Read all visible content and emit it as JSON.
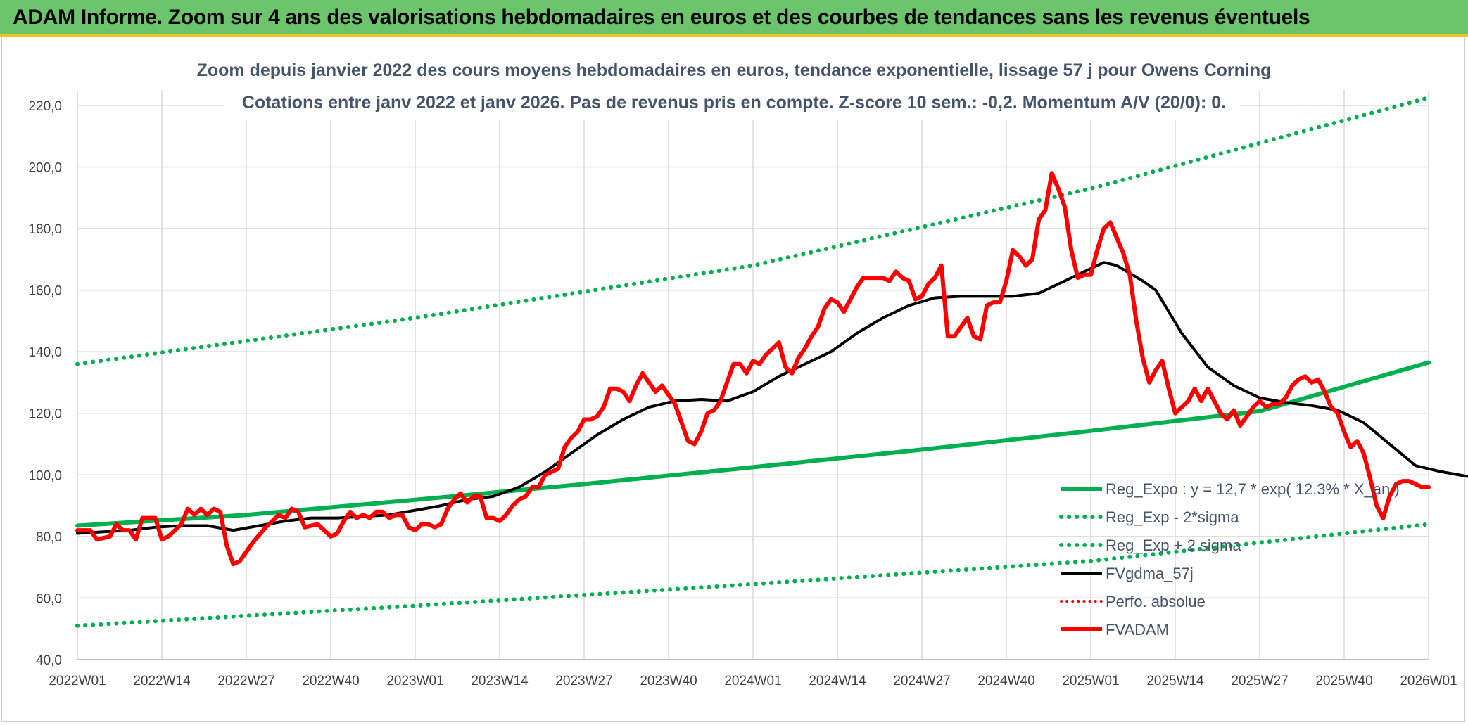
{
  "banner": {
    "title": "ADAM Informe. Zoom sur 4 ans des valorisations hebdomadaires en euros et des courbes de tendances sans les revenus éventuels"
  },
  "chart_data": {
    "type": "line",
    "title": "Zoom depuis janvier 2022 des cours moyens hebdomadaires en euros, tendance exponentielle, lissage 57 j pour Owens Corning",
    "subtitle": "Cotations entre janv 2022 et janv 2026. Pas de revenus pris en compte. Z-score 10 sem.: -0,2. Momentum A/V (20/0): 0.",
    "xlabel": "",
    "ylabel": "",
    "ylim": [
      40,
      225
    ],
    "yticks": [
      "40,0",
      "60,0",
      "80,0",
      "100,0",
      "120,0",
      "140,0",
      "160,0",
      "180,0",
      "200,0",
      "220,0"
    ],
    "xticks": [
      "2022W01",
      "2022W14",
      "2022W27",
      "2022W40",
      "2023W01",
      "2023W14",
      "2023W27",
      "2023W40",
      "2024W01",
      "2024W14",
      "2024W27",
      "2024W40",
      "2025W01",
      "2025W14",
      "2025W27",
      "2025W40",
      "2026W01"
    ],
    "x_week_range": [
      0,
      208
    ],
    "grid": true,
    "legend_position": "bottom-right",
    "colors": {
      "reg_expo": "#00b050",
      "reg_bands": "#00b050",
      "fvgdma": "#000000",
      "perfo": "#ff0000",
      "fvadam": "#ff0000",
      "banner": "#6cc46c",
      "banner_border": "#f0c419"
    },
    "series": [
      {
        "name": "Reg_Expo : y = 12,7 * exp( 12,3% *  X_an )",
        "key": "reg_expo",
        "style": "solid-thick",
        "points": [
          [
            0,
            83.5
          ],
          [
            26,
            87.0
          ],
          [
            52,
            91.9
          ],
          [
            78,
            97.0
          ],
          [
            104,
            102.5
          ],
          [
            130,
            108.2
          ],
          [
            156,
            114.3
          ],
          [
            182,
            120.7
          ],
          [
            208,
            136.5
          ]
        ]
      },
      {
        "name": "Reg_Exp - 2*sigma",
        "key": "reg_minus",
        "style": "dotted",
        "points": [
          [
            0,
            51.0
          ],
          [
            52,
            57.5
          ],
          [
            104,
            64.5
          ],
          [
            156,
            72.0
          ],
          [
            208,
            84.0
          ]
        ]
      },
      {
        "name": "Reg_Exp + 2 sigma",
        "key": "reg_plus",
        "style": "dotted",
        "points": [
          [
            0,
            136.0
          ],
          [
            52,
            151.0
          ],
          [
            104,
            168.0
          ],
          [
            156,
            193.0
          ],
          [
            208,
            222.5
          ]
        ]
      },
      {
        "name": "FVgdma_57j",
        "key": "fvgdma",
        "style": "solid",
        "points": [
          [
            0,
            81
          ],
          [
            4,
            81.5
          ],
          [
            8,
            82
          ],
          [
            12,
            83
          ],
          [
            16,
            83.5
          ],
          [
            20,
            83.5
          ],
          [
            24,
            82
          ],
          [
            28,
            83.5
          ],
          [
            32,
            85
          ],
          [
            36,
            86
          ],
          [
            40,
            86
          ],
          [
            44,
            86.5
          ],
          [
            48,
            87
          ],
          [
            52,
            88.5
          ],
          [
            56,
            90
          ],
          [
            60,
            92
          ],
          [
            64,
            93
          ],
          [
            68,
            96
          ],
          [
            72,
            101
          ],
          [
            76,
            107
          ],
          [
            80,
            113
          ],
          [
            84,
            118
          ],
          [
            88,
            122
          ],
          [
            92,
            124
          ],
          [
            96,
            124.5
          ],
          [
            100,
            124
          ],
          [
            104,
            127
          ],
          [
            108,
            132
          ],
          [
            112,
            136
          ],
          [
            116,
            140
          ],
          [
            120,
            146
          ],
          [
            124,
            151
          ],
          [
            128,
            155
          ],
          [
            132,
            157.5
          ],
          [
            136,
            158
          ],
          [
            140,
            158
          ],
          [
            144,
            158
          ],
          [
            148,
            159
          ],
          [
            152,
            163
          ],
          [
            156,
            167
          ],
          [
            158,
            169
          ],
          [
            160,
            168
          ],
          [
            164,
            163
          ],
          [
            166,
            160
          ],
          [
            170,
            146
          ],
          [
            174,
            135
          ],
          [
            178,
            129
          ],
          [
            182,
            125
          ],
          [
            186,
            123.5
          ],
          [
            190,
            122.5
          ],
          [
            194,
            121
          ],
          [
            198,
            117
          ],
          [
            202,
            110
          ],
          [
            206,
            103
          ],
          [
            210,
            101
          ],
          [
            214,
            99.5
          ]
        ]
      },
      {
        "name": "Perfo. absolue",
        "key": "perfo",
        "style": "dotted",
        "points": []
      },
      {
        "name": "FVADAM",
        "key": "fvadam",
        "style": "solid-thick",
        "points": [
          [
            0,
            82
          ],
          [
            2,
            82
          ],
          [
            3,
            79
          ],
          [
            5,
            80
          ],
          [
            6,
            84
          ],
          [
            7,
            82
          ],
          [
            8,
            82
          ],
          [
            9,
            79
          ],
          [
            10,
            86
          ],
          [
            12,
            86
          ],
          [
            13,
            79
          ],
          [
            14,
            80
          ],
          [
            16,
            84
          ],
          [
            17,
            89
          ],
          [
            18,
            87
          ],
          [
            19,
            89
          ],
          [
            20,
            87
          ],
          [
            21,
            89
          ],
          [
            22,
            88
          ],
          [
            23,
            77
          ],
          [
            24,
            71
          ],
          [
            25,
            72
          ],
          [
            27,
            78
          ],
          [
            29,
            83
          ],
          [
            31,
            87
          ],
          [
            32,
            86
          ],
          [
            33,
            89
          ],
          [
            34,
            88
          ],
          [
            35,
            83
          ],
          [
            37,
            84
          ],
          [
            38,
            82
          ],
          [
            39,
            80
          ],
          [
            40,
            81
          ],
          [
            41,
            85
          ],
          [
            42,
            88
          ],
          [
            43,
            86
          ],
          [
            44,
            87
          ],
          [
            45,
            86
          ],
          [
            46,
            88
          ],
          [
            47,
            88
          ],
          [
            48,
            86
          ],
          [
            49,
            87
          ],
          [
            50,
            87
          ],
          [
            51,
            83
          ],
          [
            52,
            82
          ],
          [
            53,
            84
          ],
          [
            54,
            84
          ],
          [
            55,
            83
          ],
          [
            56,
            84
          ],
          [
            57,
            89
          ],
          [
            58,
            92
          ],
          [
            59,
            94
          ],
          [
            60,
            91
          ],
          [
            61,
            93
          ],
          [
            62,
            93
          ],
          [
            63,
            86
          ],
          [
            64,
            86
          ],
          [
            65,
            85
          ],
          [
            66,
            87
          ],
          [
            67,
            90
          ],
          [
            68,
            92
          ],
          [
            69,
            93
          ],
          [
            70,
            96
          ],
          [
            71,
            96
          ],
          [
            72,
            100
          ],
          [
            73,
            101
          ],
          [
            74,
            102
          ],
          [
            75,
            109
          ],
          [
            76,
            112
          ],
          [
            77,
            114
          ],
          [
            78,
            118
          ],
          [
            79,
            118
          ],
          [
            80,
            119
          ],
          [
            81,
            122
          ],
          [
            82,
            128
          ],
          [
            83,
            128
          ],
          [
            84,
            127
          ],
          [
            85,
            124
          ],
          [
            86,
            129
          ],
          [
            87,
            133
          ],
          [
            88,
            130
          ],
          [
            89,
            127
          ],
          [
            90,
            129
          ],
          [
            91,
            126
          ],
          [
            92,
            123
          ],
          [
            93,
            117
          ],
          [
            94,
            111
          ],
          [
            95,
            110
          ],
          [
            96,
            114
          ],
          [
            97,
            120
          ],
          [
            98,
            121
          ],
          [
            99,
            124
          ],
          [
            100,
            130
          ],
          [
            101,
            136
          ],
          [
            102,
            136
          ],
          [
            103,
            133
          ],
          [
            104,
            137
          ],
          [
            105,
            136
          ],
          [
            106,
            139
          ],
          [
            107,
            141
          ],
          [
            108,
            143
          ],
          [
            109,
            135
          ],
          [
            110,
            133
          ],
          [
            111,
            138
          ],
          [
            112,
            141
          ],
          [
            113,
            145
          ],
          [
            114,
            148
          ],
          [
            115,
            154
          ],
          [
            116,
            157
          ],
          [
            117,
            156
          ],
          [
            118,
            153
          ],
          [
            119,
            157
          ],
          [
            120,
            161
          ],
          [
            121,
            164
          ],
          [
            122,
            164
          ],
          [
            123,
            164
          ],
          [
            124,
            164
          ],
          [
            125,
            163
          ],
          [
            126,
            166
          ],
          [
            127,
            164
          ],
          [
            128,
            163
          ],
          [
            129,
            157
          ],
          [
            130,
            158
          ],
          [
            131,
            162
          ],
          [
            132,
            164
          ],
          [
            133,
            168
          ],
          [
            134,
            145
          ],
          [
            135,
            145
          ],
          [
            136,
            148
          ],
          [
            137,
            151
          ],
          [
            138,
            145
          ],
          [
            139,
            144
          ],
          [
            140,
            155
          ],
          [
            141,
            156
          ],
          [
            142,
            156
          ],
          [
            143,
            163
          ],
          [
            144,
            173
          ],
          [
            145,
            171
          ],
          [
            146,
            168
          ],
          [
            147,
            170
          ],
          [
            148,
            183
          ],
          [
            149,
            186
          ],
          [
            150,
            198
          ],
          [
            151,
            193
          ],
          [
            152,
            187
          ],
          [
            153,
            173
          ],
          [
            154,
            164
          ],
          [
            155,
            165
          ],
          [
            156,
            165
          ],
          [
            157,
            173
          ],
          [
            158,
            180
          ],
          [
            159,
            182
          ],
          [
            160,
            177
          ],
          [
            161,
            172
          ],
          [
            162,
            165
          ],
          [
            163,
            150
          ],
          [
            164,
            138
          ],
          [
            165,
            130
          ],
          [
            166,
            134
          ],
          [
            167,
            137
          ],
          [
            168,
            128
          ],
          [
            169,
            120
          ],
          [
            170,
            122
          ],
          [
            171,
            124
          ],
          [
            172,
            128
          ],
          [
            173,
            124
          ],
          [
            174,
            128
          ],
          [
            175,
            124
          ],
          [
            176,
            120
          ],
          [
            177,
            118
          ],
          [
            178,
            121
          ],
          [
            179,
            116
          ],
          [
            180,
            119
          ],
          [
            181,
            122
          ],
          [
            182,
            124
          ],
          [
            183,
            122
          ],
          [
            184,
            123
          ],
          [
            185,
            123
          ],
          [
            186,
            125
          ],
          [
            187,
            129
          ],
          [
            188,
            131
          ],
          [
            189,
            132
          ],
          [
            190,
            130
          ],
          [
            191,
            131
          ],
          [
            192,
            127
          ],
          [
            193,
            122
          ],
          [
            194,
            120
          ],
          [
            195,
            114
          ],
          [
            196,
            109
          ],
          [
            197,
            111
          ],
          [
            198,
            107
          ],
          [
            199,
            99
          ],
          [
            200,
            90
          ],
          [
            201,
            86
          ],
          [
            202,
            93
          ],
          [
            203,
            97
          ],
          [
            204,
            98
          ],
          [
            205,
            98
          ],
          [
            206,
            97
          ],
          [
            207,
            96
          ],
          [
            208,
            96
          ]
        ]
      }
    ]
  }
}
